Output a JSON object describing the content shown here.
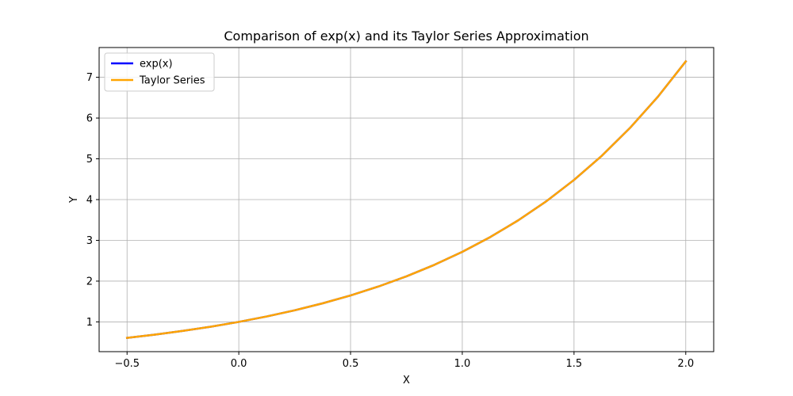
{
  "chart_data": {
    "type": "line",
    "title": "Comparison of exp(x) and its Taylor Series Approximation",
    "xlabel": "X",
    "ylabel": "Y",
    "xlim": [
      -0.625,
      2.125
    ],
    "ylim": [
      0.27,
      7.73
    ],
    "xticks": [
      -0.5,
      0.0,
      0.5,
      1.0,
      1.5,
      2.0
    ],
    "xtick_labels": [
      "−0.5",
      "0.0",
      "0.5",
      "1.0",
      "1.5",
      "2.0"
    ],
    "yticks": [
      1,
      2,
      3,
      4,
      5,
      6,
      7
    ],
    "ytick_labels": [
      "1",
      "2",
      "3",
      "4",
      "5",
      "6",
      "7"
    ],
    "grid": true,
    "legend_position": "upper-left",
    "x": [
      -0.5,
      -0.375,
      -0.25,
      -0.125,
      0.0,
      0.125,
      0.25,
      0.375,
      0.5,
      0.625,
      0.75,
      0.875,
      1.0,
      1.125,
      1.25,
      1.375,
      1.5,
      1.625,
      1.75,
      1.875,
      2.0
    ],
    "series": [
      {
        "name": "exp(x)",
        "color": "#0000ff",
        "values": [
          0.607,
          0.687,
          0.779,
          0.882,
          1.0,
          1.133,
          1.284,
          1.455,
          1.649,
          1.868,
          2.117,
          2.399,
          2.718,
          3.08,
          3.49,
          3.955,
          4.482,
          5.078,
          5.755,
          6.521,
          7.389
        ]
      },
      {
        "name": "Taylor Series",
        "color": "#ffa500",
        "values": [
          0.607,
          0.687,
          0.779,
          0.882,
          1.0,
          1.133,
          1.284,
          1.455,
          1.649,
          1.868,
          2.117,
          2.399,
          2.718,
          3.08,
          3.49,
          3.955,
          4.482,
          5.078,
          5.755,
          6.521,
          7.389
        ]
      }
    ]
  }
}
